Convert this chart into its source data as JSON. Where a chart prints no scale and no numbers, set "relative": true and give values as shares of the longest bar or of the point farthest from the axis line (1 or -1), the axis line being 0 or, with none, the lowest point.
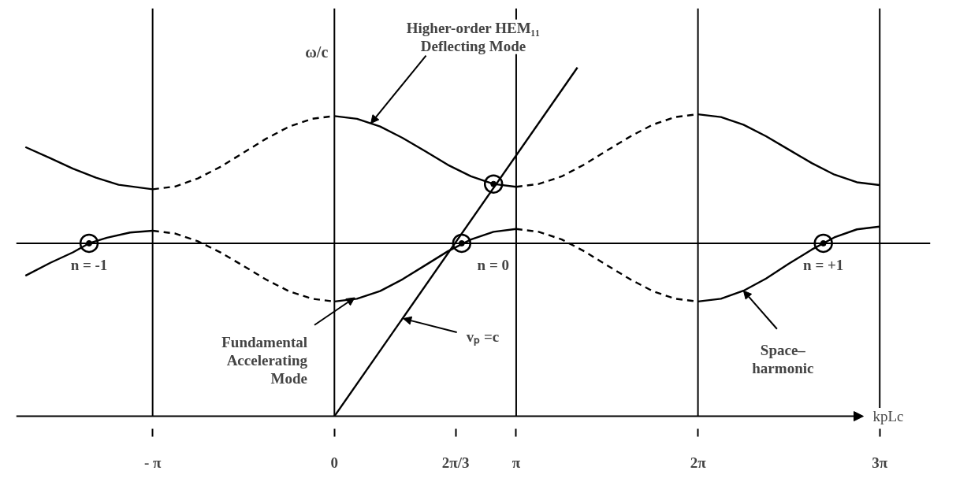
{
  "chart_data": {
    "type": "line",
    "relative": true,
    "xlabel": "kpLc",
    "ylabel": "ω/c",
    "xlim": [
      -5.5,
      10.3
    ],
    "xticks": [
      {
        "value": -3.1416,
        "label": "- π"
      },
      0,
      {
        "value": 2.0944,
        "label": "2π/3"
      },
      {
        "value": 3.1416,
        "label": "π"
      },
      {
        "value": 6.2832,
        "label": "2π"
      },
      {
        "value": 9.4248,
        "label": "3π"
      }
    ],
    "series": [
      {
        "color": "#000000",
        "line_style": "solid",
        "x": [
          -5.34,
          -4.91,
          -4.52,
          -4.12,
          -3.73,
          -3.14
        ],
        "values": [
          0.772,
          0.74,
          0.71,
          0.684,
          0.664,
          0.651
        ]
      },
      {
        "color": "#000000",
        "line_style": "dashed",
        "x": [
          -3.14,
          -2.75,
          -2.36,
          -1.96,
          -1.57,
          -1.18,
          -0.79,
          -0.39,
          0
        ],
        "values": [
          0.651,
          0.659,
          0.682,
          0.716,
          0.756,
          0.796,
          0.83,
          0.853,
          0.861
        ]
      },
      {
        "color": "#000000",
        "line_style": "solid",
        "x": [
          0,
          0.39,
          0.79,
          1.18,
          1.57,
          1.96,
          2.36,
          2.75,
          3.14
        ],
        "values": [
          0.861,
          0.853,
          0.831,
          0.798,
          0.76,
          0.721,
          0.688,
          0.666,
          0.658
        ]
      },
      {
        "color": "#000000",
        "line_style": "dashed",
        "x": [
          3.14,
          3.53,
          3.93,
          4.32,
          4.71,
          5.11,
          5.5,
          5.89,
          6.28
        ],
        "values": [
          0.658,
          0.666,
          0.688,
          0.722,
          0.762,
          0.802,
          0.836,
          0.858,
          0.866
        ]
      },
      {
        "color": "#000000",
        "line_style": "solid",
        "x": [
          6.28,
          6.68,
          7.07,
          7.46,
          7.85,
          8.25,
          8.64,
          9.03,
          9.42
        ],
        "values": [
          0.866,
          0.858,
          0.836,
          0.803,
          0.765,
          0.726,
          0.693,
          0.671,
          0.663
        ]
      },
      {
        "color": "#000000",
        "line_style": "solid",
        "x": [
          -5.34,
          -4.91,
          -4.52,
          -4.24,
          -3.93,
          -3.53,
          -3.14
        ],
        "values": [
          0.403,
          0.44,
          0.47,
          0.496,
          0.512,
          0.527,
          0.532
        ]
      },
      {
        "color": "#000000",
        "line_style": "dashed",
        "x": [
          -3.14,
          -2.75,
          -2.36,
          -1.96,
          -1.57,
          -1.18,
          -0.79,
          -0.39,
          0
        ],
        "values": [
          0.532,
          0.524,
          0.502,
          0.469,
          0.431,
          0.392,
          0.359,
          0.337,
          0.329
        ]
      },
      {
        "color": "#000000",
        "line_style": "solid",
        "x": [
          0,
          0.39,
          0.79,
          1.18,
          1.57,
          1.96,
          2.36,
          2.75,
          3.14
        ],
        "values": [
          0.329,
          0.337,
          0.359,
          0.393,
          0.433,
          0.473,
          0.507,
          0.529,
          0.537
        ]
      },
      {
        "color": "#000000",
        "line_style": "dashed",
        "x": [
          3.14,
          3.53,
          3.93,
          4.32,
          4.71,
          5.11,
          5.5,
          5.89,
          6.28
        ],
        "values": [
          0.537,
          0.529,
          0.507,
          0.473,
          0.433,
          0.393,
          0.359,
          0.337,
          0.329
        ]
      },
      {
        "color": "#000000",
        "line_style": "solid",
        "x": [
          6.28,
          6.68,
          7.07,
          7.46,
          7.85,
          8.25,
          8.64,
          9.03,
          9.42
        ],
        "values": [
          0.329,
          0.337,
          0.36,
          0.395,
          0.437,
          0.478,
          0.513,
          0.536,
          0.544
        ]
      },
      {
        "color": "#000000",
        "line_style": "solid",
        "x": [
          0,
          4.2
        ],
        "values": [
          0,
          1
        ]
      },
      {
        "type": "scatter",
        "marker": "circle",
        "color": "#000000",
        "x": [
          -4.24,
          2.2,
          2.75,
          8.45
        ],
        "values": [
          0.496,
          0.496,
          0.666,
          0.496
        ]
      }
    ],
    "ref_lines": [
      {
        "axis": "y",
        "value": 0.496
      },
      {
        "axis": "x",
        "value": -3.1416
      },
      {
        "axis": "x",
        "value": 0
      },
      {
        "axis": "x",
        "value": 3.1416
      },
      {
        "axis": "x",
        "value": 6.2832
      },
      {
        "axis": "x",
        "value": 9.4248
      }
    ],
    "annotations": [
      {
        "text": "Higher-order HEM₁₁\nDeflecting Mode",
        "x": 0.63,
        "y": 0.84
      },
      {
        "text": "n = -1",
        "x": -4.24,
        "y": 0.496
      },
      {
        "text": "n = 0",
        "x": 2.2,
        "y": 0.496
      },
      {
        "text": "n = +1",
        "x": 8.45,
        "y": 0.496
      },
      {
        "text": "Fundamental\nAccelerating\nMode",
        "x": 0.35,
        "y": 0.34
      },
      {
        "text": "vₚ =c",
        "x": 1.19,
        "y": 0.28
      },
      {
        "text": "Space–\nharmonic",
        "x": 7.07,
        "y": 0.36
      }
    ]
  }
}
